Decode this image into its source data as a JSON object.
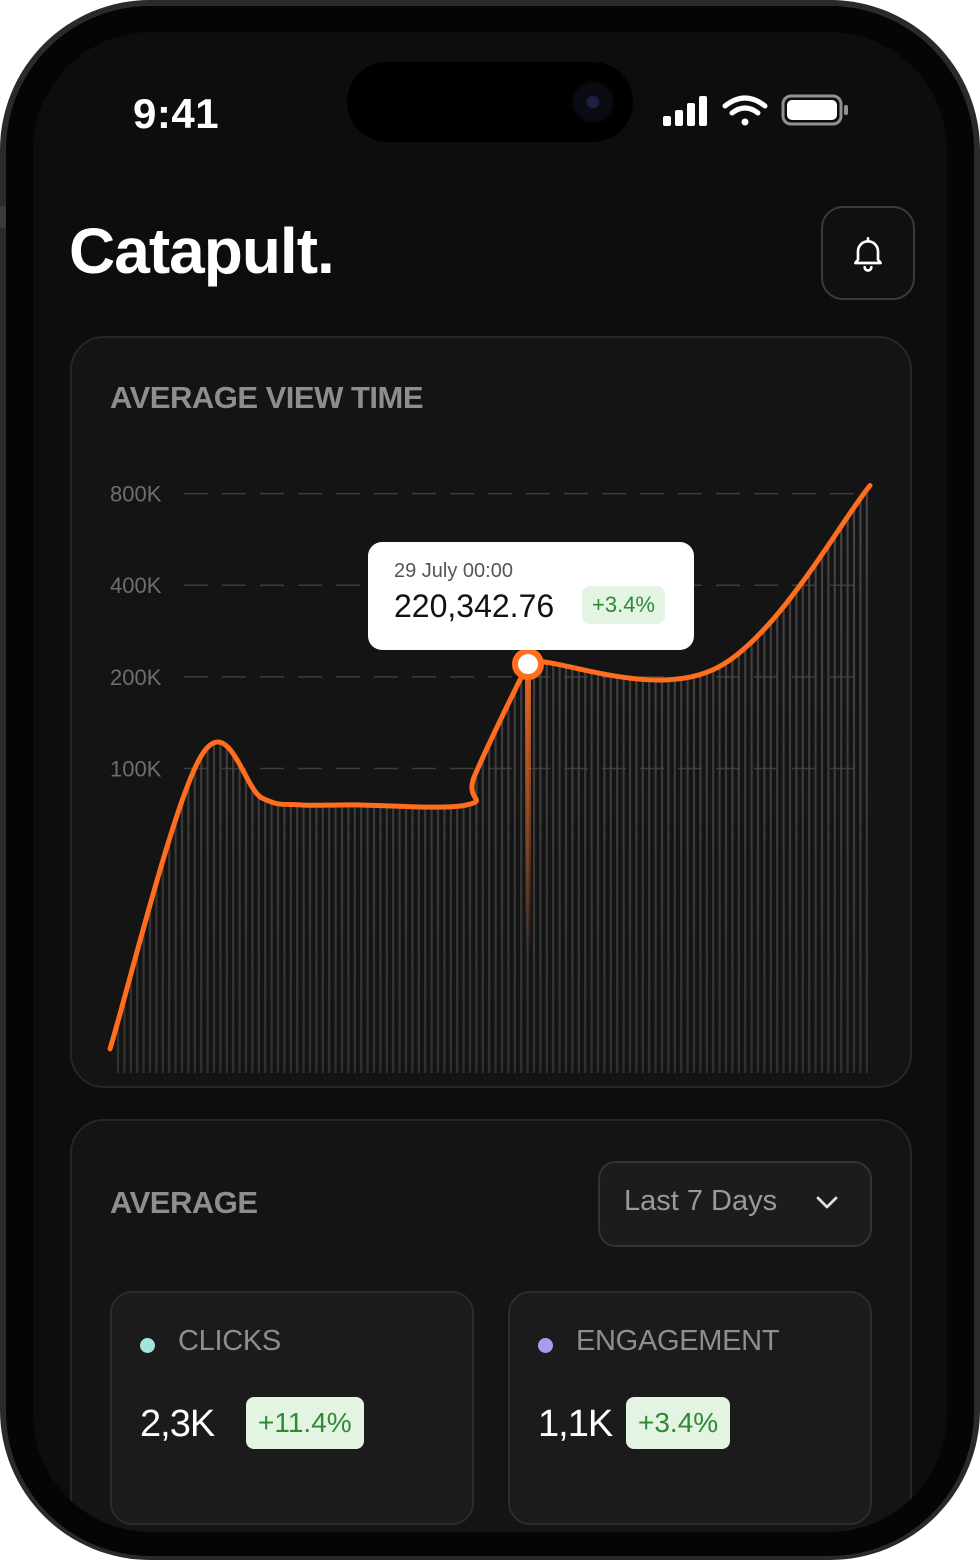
{
  "status_bar": {
    "time": "9:41"
  },
  "header": {
    "app_title": "Catapult.",
    "notification_icon": "bell-icon"
  },
  "average_view_time": {
    "title": "AVERAGE VIEW TIME",
    "tooltip": {
      "date": "29 July 00:00",
      "value": "220,342.76",
      "change": "+3.4%"
    }
  },
  "chart_data": {
    "type": "area",
    "title": "AVERAGE VIEW TIME",
    "y_scale": "log",
    "y_ticks": [
      {
        "label": "800K",
        "value": 800000
      },
      {
        "label": "400K",
        "value": 400000
      },
      {
        "label": "200K",
        "value": 200000
      },
      {
        "label": "100K",
        "value": 100000
      }
    ],
    "ylim": [
      10000,
      900000
    ],
    "grid": true,
    "x": [
      0,
      12,
      20,
      25,
      32,
      47,
      48,
      55,
      56,
      80,
      100
    ],
    "series": [
      {
        "values": [
          12000,
          110000,
          80000,
          76000,
          76000,
          76000,
          95000,
          220000,
          225000,
          215000,
          850000
        ]
      }
    ],
    "highlight": {
      "x": 55,
      "value": 220342.76
    },
    "colors": {
      "line": "#ff6d1f",
      "fill_lines": "#4a4a4a"
    }
  },
  "average": {
    "title": "AVERAGE",
    "range_select": {
      "value": "Last 7 Days"
    },
    "stats": [
      {
        "label": "CLICKS",
        "value": "2,3K",
        "change": "+11.4%",
        "dot_color": "#a6e3dc"
      },
      {
        "label": "ENGAGEMENT",
        "value": "1,1K",
        "change": "+3.4%",
        "dot_color": "#a79cf0"
      }
    ]
  }
}
